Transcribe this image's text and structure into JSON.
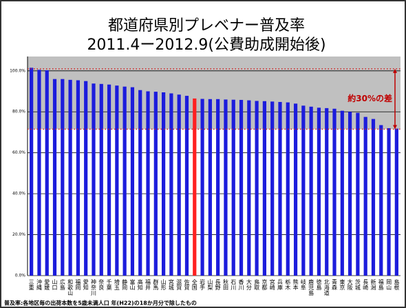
{
  "chart_data": {
    "type": "bar",
    "title": "都道府県別プレベナー普及率",
    "subtitle": "2011.4ー2012.9(公費助成開始後)",
    "categories": [
      "三重",
      "沖縄",
      "愛媛",
      "山口",
      "広島",
      "和歌山",
      "福岡",
      "愛知",
      "神奈川",
      "奈良",
      "千葉",
      "埼玉",
      "静岡",
      "富山",
      "高知",
      "福井",
      "群馬",
      "山形",
      "宮城",
      "滋賀",
      "佐賀",
      "全国",
      "岩手",
      "山梨",
      "長野",
      "秋田",
      "石川",
      "香川",
      "大分",
      "鳥取",
      "京都",
      "宮崎",
      "兵庫",
      "栃木",
      "熊本",
      "岐阜",
      "鹿児島",
      "徳島",
      "北海道",
      "青森",
      "東京",
      "大阪",
      "茨城",
      "長崎",
      "新潟",
      "福島",
      "岡山",
      "島根"
    ],
    "values": [
      101.5,
      100.5,
      100.3,
      96,
      96,
      95.6,
      95.4,
      95,
      93.8,
      93.6,
      93.3,
      92.8,
      92.3,
      92,
      90.6,
      90,
      89.8,
      89.5,
      89,
      88.4,
      87.8,
      86.5,
      86.3,
      86.2,
      86.2,
      86,
      85.9,
      85.8,
      85.6,
      85.3,
      85.2,
      85,
      84.8,
      84.6,
      84,
      83,
      82.5,
      82,
      81.8,
      81.5,
      80.5,
      80,
      79.5,
      77.5,
      76.5,
      73.5,
      72,
      71.8
    ],
    "colors": [
      "#1c1cdc",
      "#1c1cdc",
      "#1c1cdc",
      "#1c1cdc",
      "#1c1cdc",
      "#1c1cdc",
      "#1c1cdc",
      "#1c1cdc",
      "#1c1cdc",
      "#1c1cdc",
      "#1c1cdc",
      "#1c1cdc",
      "#1c1cdc",
      "#1c1cdc",
      "#1c1cdc",
      "#1c1cdc",
      "#1c1cdc",
      "#1c1cdc",
      "#1c1cdc",
      "#1c1cdc",
      "#1c1cdc",
      "#ff2020",
      "#1c1cdc",
      "#1c1cdc",
      "#1c1cdc",
      "#1c1cdc",
      "#1c1cdc",
      "#1c1cdc",
      "#1c1cdc",
      "#1c1cdc",
      "#1c1cdc",
      "#1c1cdc",
      "#1c1cdc",
      "#1c1cdc",
      "#1c1cdc",
      "#1c1cdc",
      "#1c1cdc",
      "#1c1cdc",
      "#1c1cdc",
      "#1c1cdc",
      "#1c1cdc",
      "#1c1cdc",
      "#1c1cdc",
      "#1c1cdc",
      "#1c1cdc",
      "#1c1cdc",
      "#1c1cdc",
      "#1c1cdc"
    ],
    "ylim": [
      0,
      107
    ],
    "yticks": [
      {
        "value": 0,
        "label": "0.0%"
      },
      {
        "value": 20,
        "label": "20.0%"
      },
      {
        "value": 40,
        "label": "40.0%"
      },
      {
        "value": 60,
        "label": "60.0%"
      },
      {
        "value": 80,
        "label": "80.0%"
      },
      {
        "value": 100,
        "label": "100.0%"
      }
    ],
    "grid": true,
    "range_lines": [
      101,
      71.5
    ],
    "annotation": "約30%の差",
    "footnote": "普及率:各地区毎の出荷本数を5歳未満人口 年(H22)の18か月分で除したもの"
  }
}
